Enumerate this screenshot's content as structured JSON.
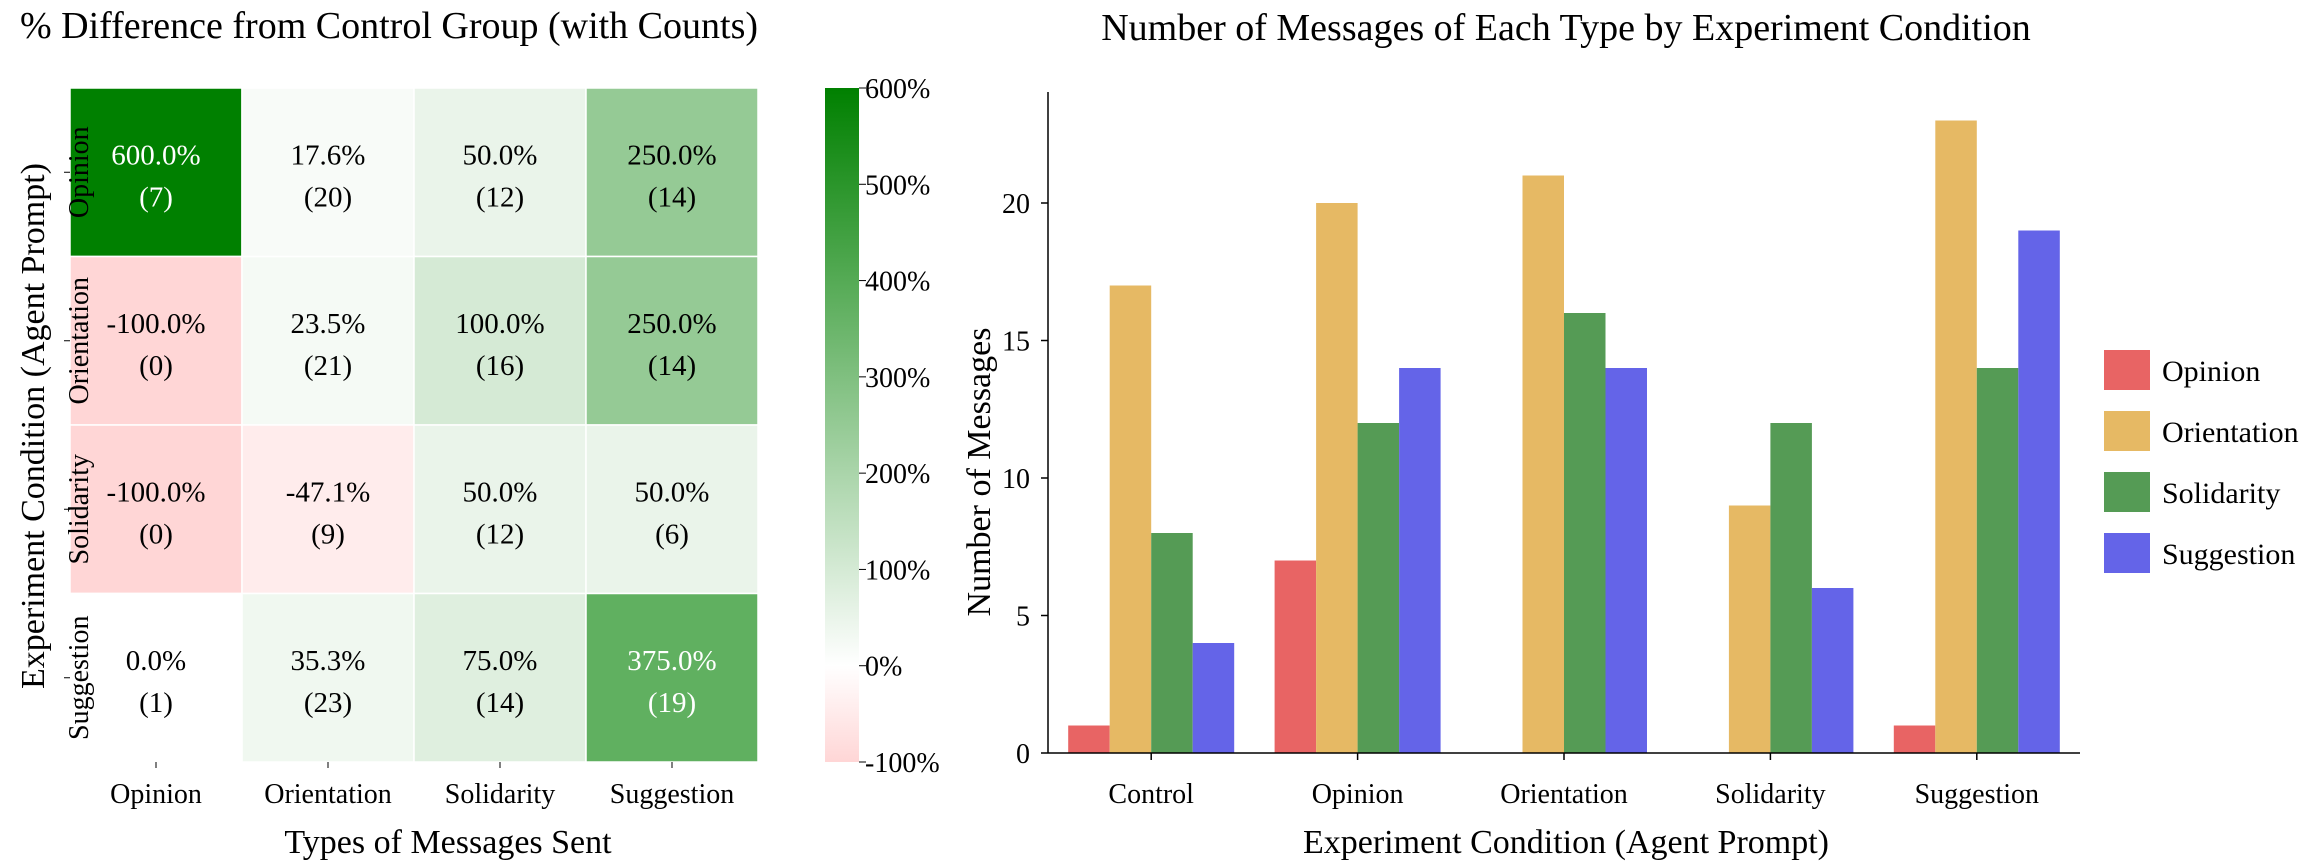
{
  "chart_data": [
    {
      "type": "heatmap",
      "title": "% Difference from Control Group (with Counts)",
      "xlabel": "Types of Messages Sent",
      "ylabel": "Experiment Condition (Agent Prompt)",
      "columns": [
        "Opinion",
        "Orientation",
        "Solidarity",
        "Suggestion"
      ],
      "rows": [
        "Opinion",
        "Orientation",
        "Solidarity",
        "Suggestion"
      ],
      "percent_labels": [
        [
          "600.0%",
          "17.6%",
          "50.0%",
          "250.0%"
        ],
        [
          "-100.0%",
          "23.5%",
          "100.0%",
          "250.0%"
        ],
        [
          "-100.0%",
          "-47.1%",
          "50.0%",
          "50.0%"
        ],
        [
          "0.0%",
          "35.3%",
          "75.0%",
          "375.0%"
        ]
      ],
      "percent_values": [
        [
          600.0,
          17.6,
          50.0,
          250.0
        ],
        [
          -100.0,
          23.5,
          100.0,
          250.0
        ],
        [
          -100.0,
          -47.1,
          50.0,
          50.0
        ],
        [
          0.0,
          35.3,
          75.0,
          375.0
        ]
      ],
      "count_labels": [
        [
          "(7)",
          "(20)",
          "(12)",
          "(14)"
        ],
        [
          "(0)",
          "(21)",
          "(16)",
          "(14)"
        ],
        [
          "(0)",
          "(9)",
          "(12)",
          "(6)"
        ],
        [
          "(1)",
          "(23)",
          "(14)",
          "(19)"
        ]
      ],
      "colorbar": {
        "range": [
          -100,
          600
        ],
        "ticks": [
          600,
          500,
          400,
          300,
          200,
          100,
          0,
          -100
        ],
        "tick_labels": [
          "600%",
          "500%",
          "400%",
          "300%",
          "200%",
          "100%",
          "0%",
          "-100%"
        ],
        "negative_color": "#ffd6d6",
        "zero_color": "#ffffff",
        "positive_color": "#008000"
      }
    },
    {
      "type": "bar",
      "title": "Number of Messages of Each Type by Experiment Condition",
      "xlabel": "Experiment Condition (Agent Prompt)",
      "ylabel": "Number of Messages",
      "categories": [
        "Control",
        "Opinion",
        "Orientation",
        "Solidarity",
        "Suggestion"
      ],
      "ylim": [
        0,
        24
      ],
      "yticks": [
        0,
        5,
        10,
        15,
        20
      ],
      "legend_position": "center-right",
      "series": [
        {
          "name": "Opinion",
          "color": "#e86464",
          "values": [
            1,
            7,
            0,
            0,
            1
          ]
        },
        {
          "name": "Orientation",
          "color": "#e6b964",
          "values": [
            17,
            20,
            21,
            9,
            23
          ]
        },
        {
          "name": "Solidarity",
          "color": "#559b55",
          "values": [
            8,
            12,
            16,
            12,
            14
          ]
        },
        {
          "name": "Suggestion",
          "color": "#6464e8",
          "values": [
            4,
            14,
            14,
            6,
            19
          ]
        }
      ]
    }
  ]
}
